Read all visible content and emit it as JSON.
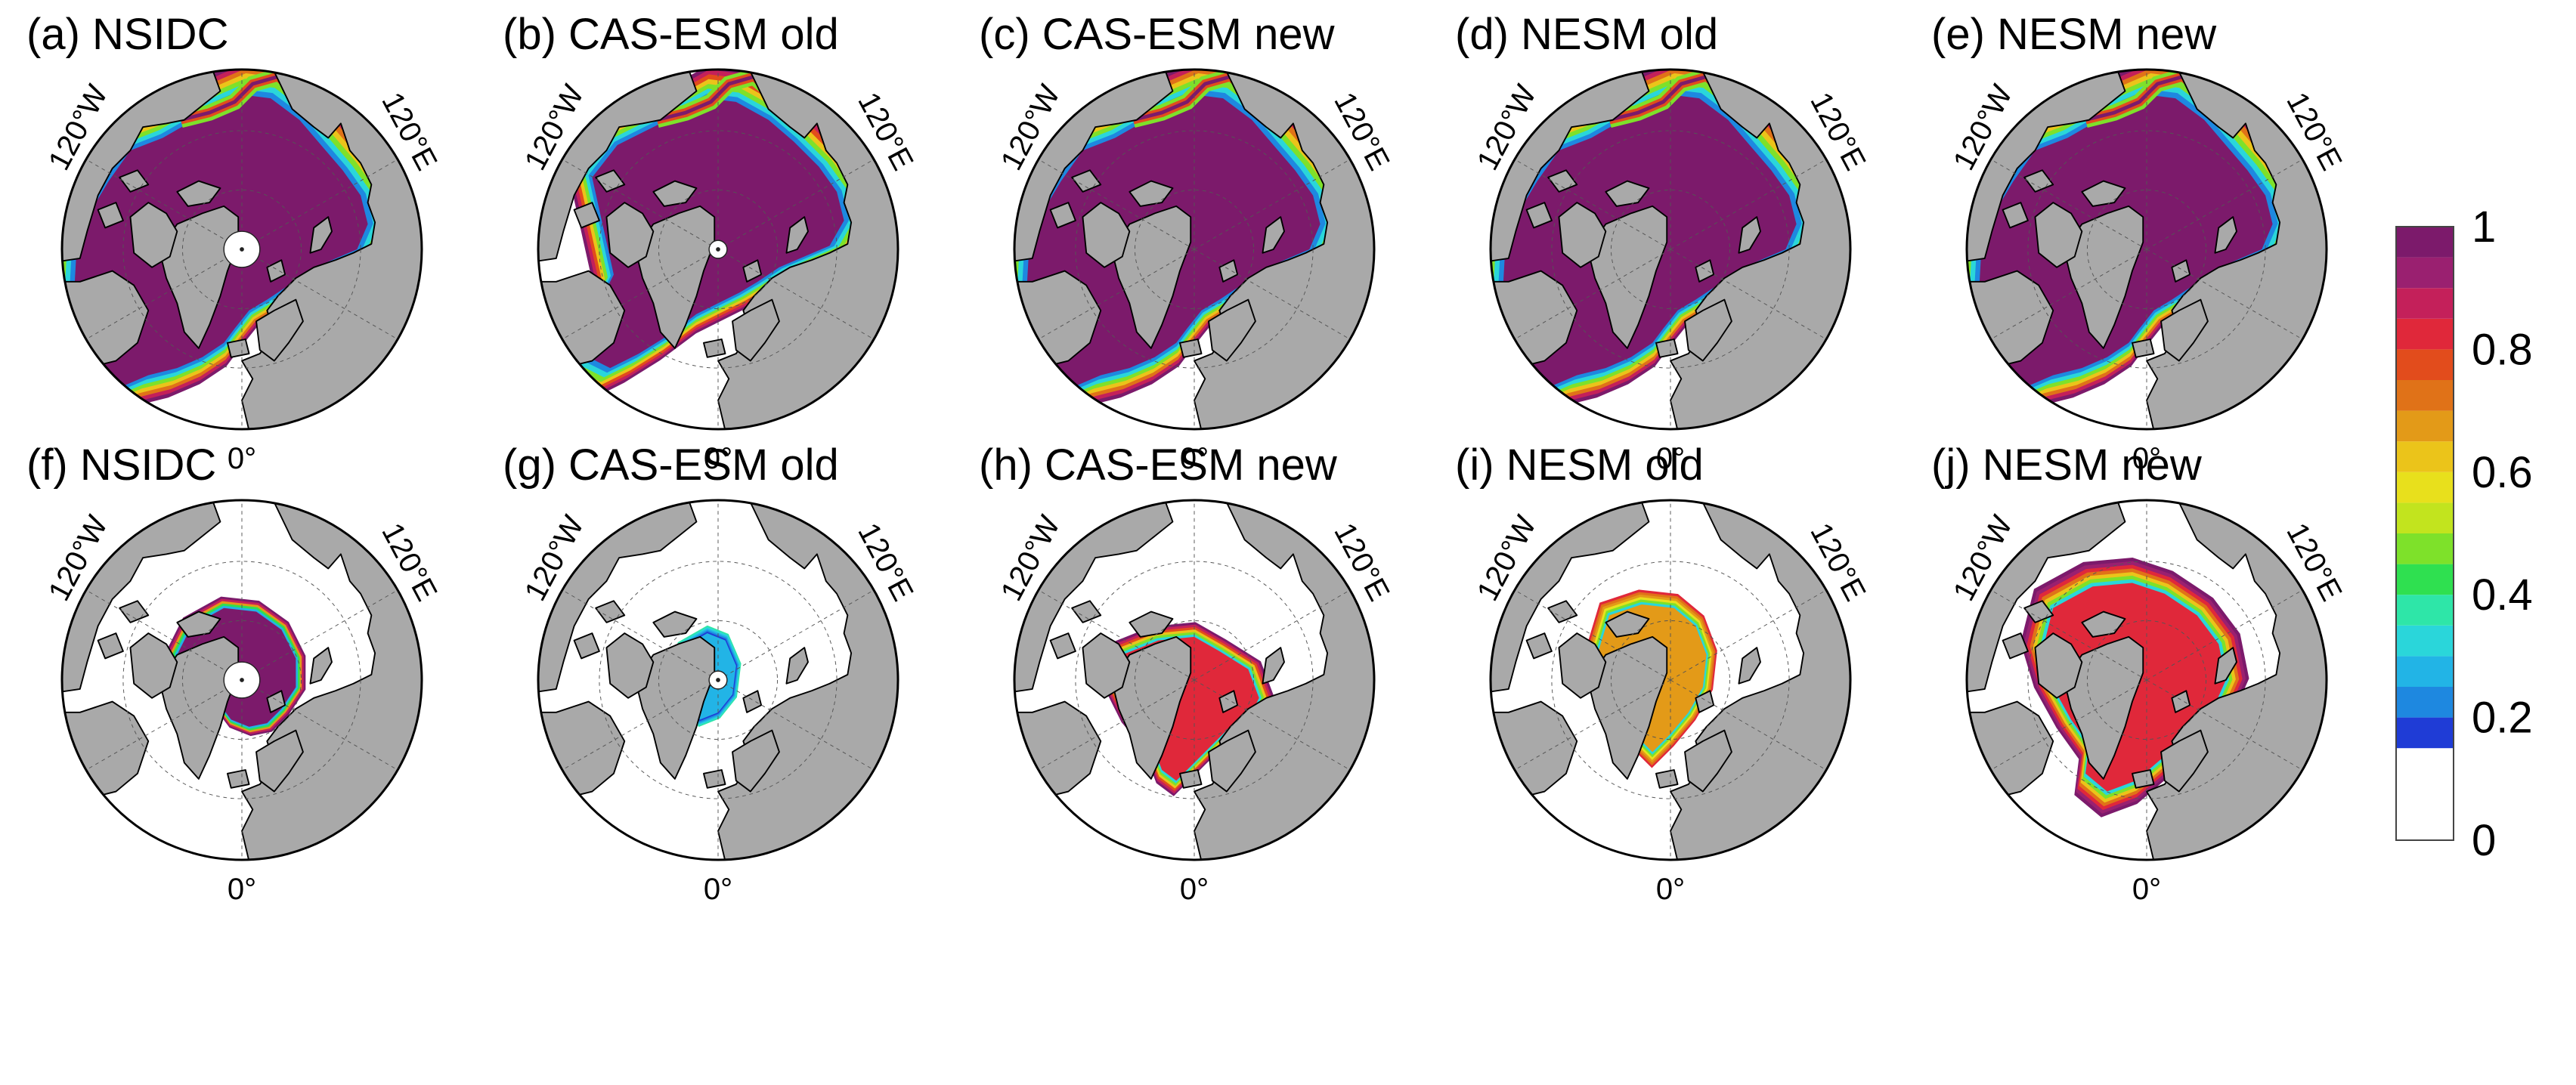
{
  "panels": [
    {
      "id": "a",
      "title": "(a) NSIDC",
      "row": 0,
      "col": 0,
      "variant": "fullA",
      "polehole": 1,
      "lon_labels": [
        "120°W",
        "120°E",
        "0°"
      ]
    },
    {
      "id": "b",
      "title": "(b) CAS-ESM old",
      "row": 0,
      "col": 1,
      "variant": "fullB",
      "polehole": 2,
      "lon_labels": [
        "120°W",
        "120°E",
        "0°"
      ]
    },
    {
      "id": "c",
      "title": "(c) CAS-ESM new",
      "row": 0,
      "col": 2,
      "variant": "fullA",
      "polehole": 0,
      "lon_labels": [
        "120°W",
        "120°E",
        "0°"
      ]
    },
    {
      "id": "d",
      "title": "(d) NESM old",
      "row": 0,
      "col": 3,
      "variant": "fullA",
      "polehole": 0,
      "lon_labels": [
        "120°W",
        "120°E",
        "0°"
      ]
    },
    {
      "id": "e",
      "title": "(e) NESM new",
      "row": 0,
      "col": 4,
      "variant": "fullA",
      "polehole": 0,
      "lon_labels": [
        "120°W",
        "120°E",
        "0°"
      ]
    },
    {
      "id": "f",
      "title": "(f) NSIDC",
      "row": 1,
      "col": 0,
      "variant": "septF",
      "polehole": 1,
      "lon_labels": [
        "120°W",
        "120°E",
        "0°"
      ]
    },
    {
      "id": "g",
      "title": "(g) CAS-ESM old",
      "row": 1,
      "col": 1,
      "variant": "septG",
      "polehole": 2,
      "lon_labels": [
        "120°W",
        "120°E",
        "0°"
      ]
    },
    {
      "id": "h",
      "title": "(h) CAS-ESM new",
      "row": 1,
      "col": 2,
      "variant": "septH",
      "polehole": 0,
      "lon_labels": [
        "120°W",
        "120°E",
        "0°"
      ]
    },
    {
      "id": "i",
      "title": "(i) NESM old",
      "row": 1,
      "col": 3,
      "variant": "septI",
      "polehole": 0,
      "lon_labels": [
        "120°W",
        "120°E",
        "0°"
      ]
    },
    {
      "id": "j",
      "title": "(j) NESM new",
      "row": 1,
      "col": 4,
      "variant": "septJ",
      "polehole": 0,
      "lon_labels": [
        "120°W",
        "120°E",
        "0°"
      ]
    }
  ],
  "colors": {
    "ocean": "#ffffff",
    "land": "#a9a9a9",
    "ice_full": "#7c1a6b",
    "coast": "#000000",
    "grid": "#555555"
  },
  "colorbar": {
    "ticks": [
      "1",
      "0.8",
      "0.6",
      "0.4",
      "0.2",
      "0"
    ],
    "levels": [
      0,
      0.15,
      0.2,
      0.25,
      0.3,
      0.35,
      0.4,
      0.45,
      0.5,
      0.55,
      0.6,
      0.65,
      0.7,
      0.75,
      0.8,
      0.85,
      0.9,
      0.95,
      1
    ],
    "colors": [
      "#ffffff",
      "#1f3cd6",
      "#1e88e0",
      "#22b4e6",
      "#2ad6da",
      "#2ee6a8",
      "#2fe050",
      "#7ee12a",
      "#c2e41e",
      "#e8e01c",
      "#ebc41a",
      "#e39a18",
      "#e07218",
      "#e24c1c",
      "#e0283a",
      "#c4205a",
      "#9a2070",
      "#7c1a6b"
    ]
  },
  "chart_data": {
    "type": "heatmap",
    "description_free": true,
    "panels": [
      "(a) NSIDC",
      "(b) CAS-ESM old",
      "(c) CAS-ESM new",
      "(d) NESM old",
      "(e) NESM new",
      "(f) NSIDC",
      "(g) CAS-ESM old",
      "(h) CAS-ESM new",
      "(i) NESM old",
      "(j) NESM new"
    ],
    "colorbar_range": [
      0,
      1
    ],
    "colorbar_ticks": [
      0,
      0.2,
      0.4,
      0.6,
      0.8,
      1
    ],
    "colorbar_levels": [
      0,
      0.15,
      0.2,
      0.25,
      0.3,
      0.35,
      0.4,
      0.45,
      0.5,
      0.55,
      0.6,
      0.65,
      0.7,
      0.75,
      0.8,
      0.85,
      0.9,
      0.95,
      1
    ],
    "longitude_labels": [
      "120°W",
      "120°E",
      "0°"
    ]
  }
}
